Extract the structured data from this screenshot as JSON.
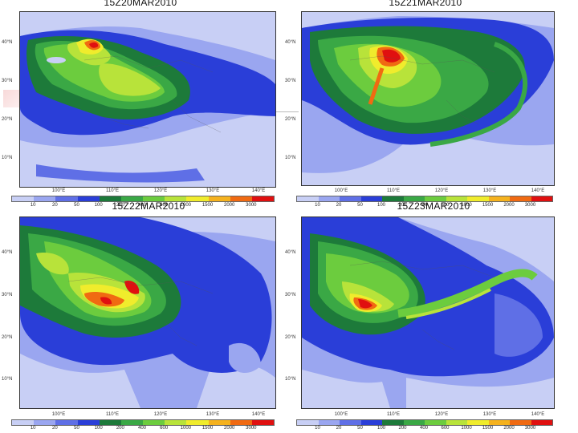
{
  "panels": [
    {
      "title": "15Z20MAR2010"
    },
    {
      "title": "15Z21MAR2010"
    },
    {
      "title": "15Z22MAR2010"
    },
    {
      "title": "15Z23MAR2010"
    }
  ],
  "lat_ticks": [
    "40°N",
    "30°N",
    "20°N",
    "10°N"
  ],
  "lon_ticks": [
    "100°E",
    "110°E",
    "120°E",
    "130°E",
    "140°E"
  ],
  "colorbar": {
    "labels": [
      "10",
      "20",
      "50",
      "100",
      "200",
      "400",
      "600",
      "1000",
      "1500",
      "2000",
      "3000"
    ],
    "colors": [
      "#c8cff5",
      "#9aa6f0",
      "#5f6fe6",
      "#2a3ed8",
      "#1d7a3a",
      "#3aa845",
      "#6ccc3e",
      "#b8e33a",
      "#f0ec2c",
      "#f5b21e",
      "#f06a12",
      "#e01010"
    ]
  }
}
